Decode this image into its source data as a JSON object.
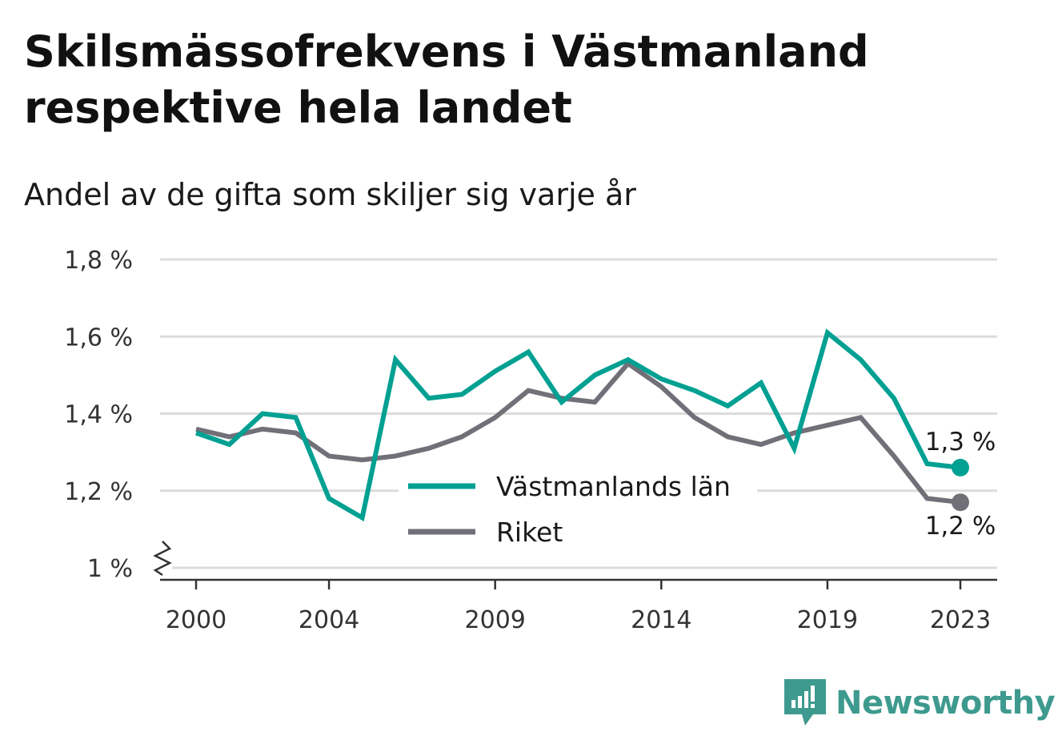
{
  "title": "Skilsmässofrekvens i Västmanland respektive hela landet",
  "subtitle": "Andel av de gifta som skiljer sig varje år",
  "brand": {
    "name": "Newsworthy",
    "icon": "newsworthy-logo-icon",
    "color": "#3e9a8e"
  },
  "chart_data": {
    "type": "line",
    "title": "Skilsmässofrekvens i Västmanland respektive hela landet",
    "subtitle": "Andel av de gifta som skiljer sig varje år",
    "xlabel": "",
    "ylabel": "",
    "x": [
      2000,
      2001,
      2002,
      2003,
      2004,
      2005,
      2006,
      2007,
      2008,
      2009,
      2010,
      2011,
      2012,
      2013,
      2014,
      2015,
      2016,
      2017,
      2018,
      2019,
      2020,
      2021,
      2022,
      2023
    ],
    "xlim": [
      2000,
      2023
    ],
    "ylim": [
      1.0,
      1.8
    ],
    "y_axis_break": true,
    "x_ticks": [
      2000,
      2004,
      2009,
      2014,
      2019,
      2023
    ],
    "x_tick_labels": [
      "2000",
      "2004",
      "2009",
      "2014",
      "2019",
      "2023"
    ],
    "y_ticks": [
      1.0,
      1.2,
      1.4,
      1.6,
      1.8
    ],
    "y_tick_labels": [
      "1 %",
      "1,2 %",
      "1,4 %",
      "1,6 %",
      "1,8 %"
    ],
    "grid": true,
    "legend_position": "bottom-center",
    "series": [
      {
        "name": "Västmanlands län",
        "color": "#00a092",
        "values": [
          1.35,
          1.32,
          1.4,
          1.39,
          1.18,
          1.13,
          1.54,
          1.44,
          1.45,
          1.51,
          1.56,
          1.43,
          1.5,
          1.54,
          1.49,
          1.46,
          1.42,
          1.48,
          1.31,
          1.61,
          1.54,
          1.44,
          1.27,
          1.26
        ],
        "end_label": "1,3 %"
      },
      {
        "name": "Riket",
        "color": "#717078",
        "values": [
          1.36,
          1.34,
          1.36,
          1.35,
          1.29,
          1.28,
          1.29,
          1.31,
          1.34,
          1.39,
          1.46,
          1.44,
          1.43,
          1.53,
          1.47,
          1.39,
          1.34,
          1.32,
          1.35,
          1.37,
          1.39,
          1.29,
          1.18,
          1.17
        ],
        "end_label": "1,2 %"
      }
    ]
  }
}
